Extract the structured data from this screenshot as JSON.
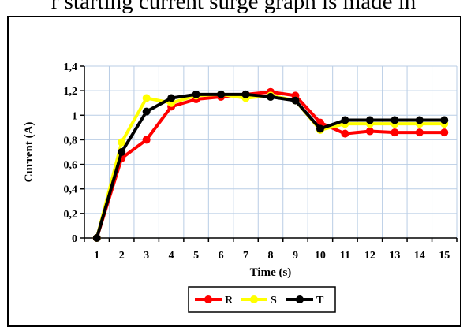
{
  "caption": "r starting current surge graph is made in",
  "chart_data": {
    "type": "line",
    "xlabel": "Time (s)",
    "ylabel": "Current  (A)",
    "ylim": [
      0,
      1.4
    ],
    "yticks": [
      "0",
      "0,2",
      "0,4",
      "0,6",
      "0,8",
      "1",
      "1,2",
      "1,4"
    ],
    "categories": [
      "1",
      "2",
      "3",
      "4",
      "5",
      "6",
      "7",
      "8",
      "9",
      "10",
      "11",
      "12",
      "13",
      "14",
      "15"
    ],
    "grid": true,
    "legend_position": "bottom",
    "series": [
      {
        "name": "R",
        "color": "#ff0000",
        "values": [
          0,
          0.65,
          0.8,
          1.07,
          1.13,
          1.15,
          1.17,
          1.19,
          1.16,
          0.94,
          0.85,
          0.87,
          0.86,
          0.86,
          0.86
        ]
      },
      {
        "name": "S",
        "color": "#ffff00",
        "values": [
          0,
          0.78,
          1.14,
          1.1,
          1.16,
          1.17,
          1.14,
          1.16,
          1.12,
          0.88,
          0.93,
          0.93,
          0.93,
          0.93,
          0.93
        ]
      },
      {
        "name": "T",
        "color": "#000000",
        "values": [
          0,
          0.7,
          1.03,
          1.14,
          1.17,
          1.17,
          1.17,
          1.15,
          1.12,
          0.89,
          0.96,
          0.96,
          0.96,
          0.96,
          0.96
        ]
      }
    ]
  }
}
